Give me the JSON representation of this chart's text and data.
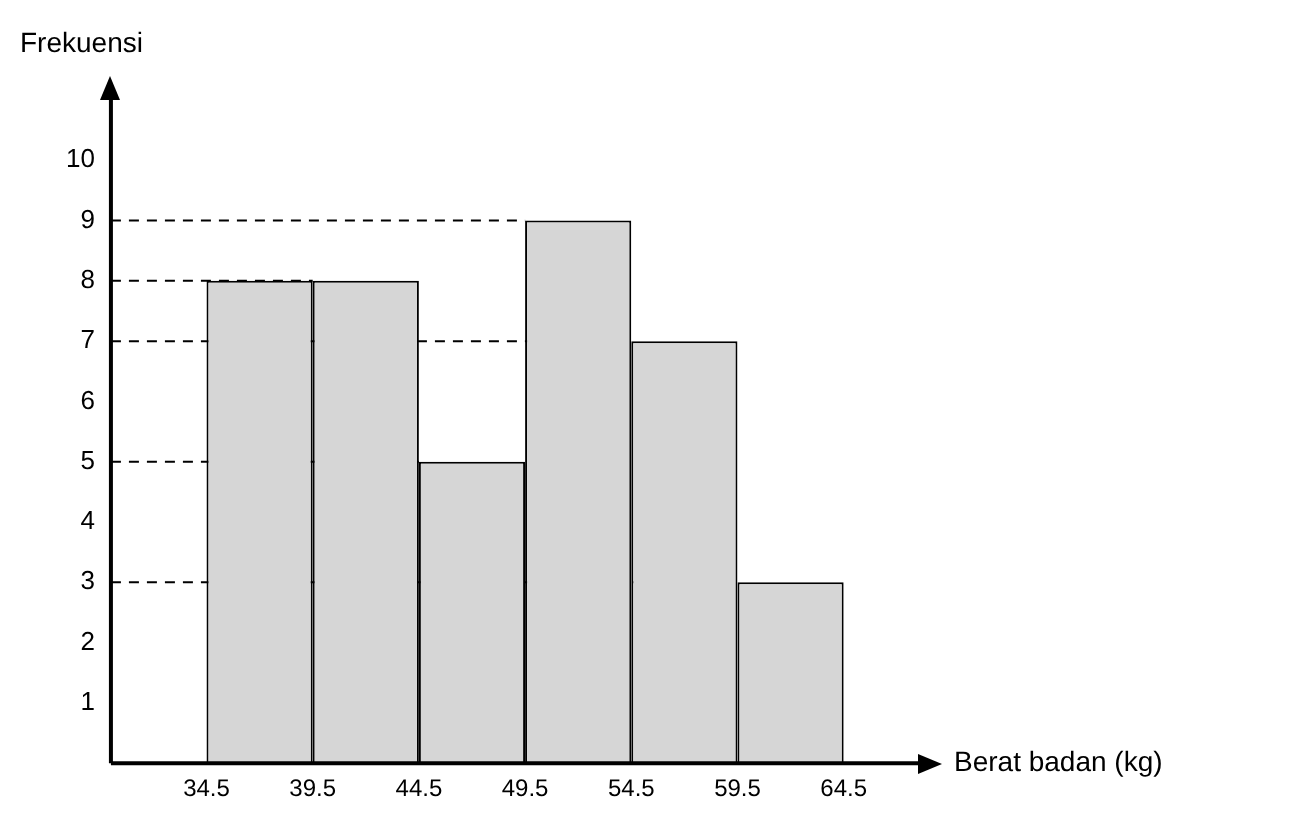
{
  "chart_data": {
    "type": "histogram",
    "xlabel": "Berat badan (kg)",
    "ylabel": "Frekuensi",
    "bins": [
      34.5,
      39.5,
      44.5,
      49.5,
      54.5,
      59.5,
      64.5
    ],
    "values": [
      8,
      8,
      5,
      9,
      7,
      3
    ],
    "color": "#d6d6d6",
    "xlim": [
      30,
      68
    ],
    "xticks": [
      34.5,
      39.5,
      44.5,
      49.5,
      54.5,
      59.5,
      64.5
    ],
    "ylim": [
      0,
      11
    ],
    "yticks": [
      1,
      2,
      3,
      4,
      5,
      6,
      7,
      8,
      9,
      10
    ],
    "ref_lines": [
      {
        "axis": "y",
        "value": 9,
        "line_style": "dashed"
      },
      {
        "axis": "y",
        "value": 8,
        "line_style": "dashed"
      },
      {
        "axis": "y",
        "value": 7,
        "line_style": "dashed"
      },
      {
        "axis": "y",
        "value": 5,
        "line_style": "dashed"
      },
      {
        "axis": "y",
        "value": 3,
        "line_style": "dashed"
      }
    ],
    "grid": false,
    "legend": false
  }
}
